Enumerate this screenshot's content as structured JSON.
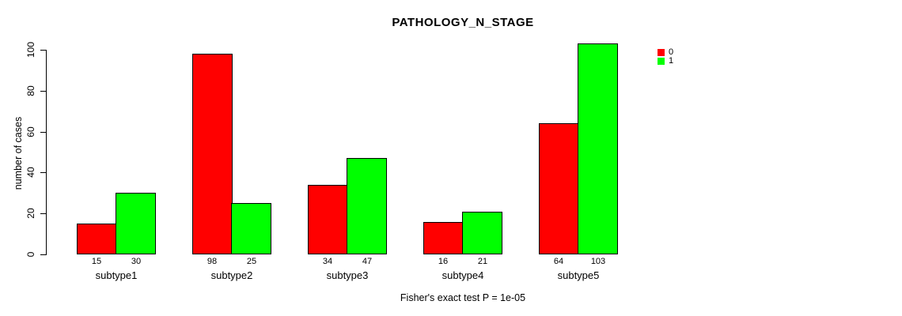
{
  "chart_data": {
    "type": "bar",
    "title": "PATHOLOGY_N_STAGE",
    "ylabel": "number of cases",
    "xlabel": "",
    "caption": "Fisher's exact test P = 1e-05",
    "categories": [
      "subtype1",
      "subtype2",
      "subtype3",
      "subtype4",
      "subtype5"
    ],
    "series": [
      {
        "name": "0",
        "color": "#FF0000",
        "values": [
          15,
          98,
          34,
          16,
          64
        ]
      },
      {
        "name": "1",
        "color": "#00FF00",
        "values": [
          30,
          25,
          47,
          21,
          103
        ]
      }
    ],
    "ylim": [
      0,
      100
    ],
    "yticks": [
      0,
      20,
      40,
      60,
      80,
      100
    ],
    "bar_value_labels": [
      [
        15,
        98,
        34,
        16,
        64
      ],
      [
        30,
        25,
        47,
        21,
        103
      ]
    ],
    "grid": false,
    "legend_position": "top-right-inside"
  },
  "colors": {
    "background": "#FFFFFF",
    "axis": "#000000",
    "text": "#000000",
    "series0": "#FF0000",
    "series1": "#00FF00"
  }
}
